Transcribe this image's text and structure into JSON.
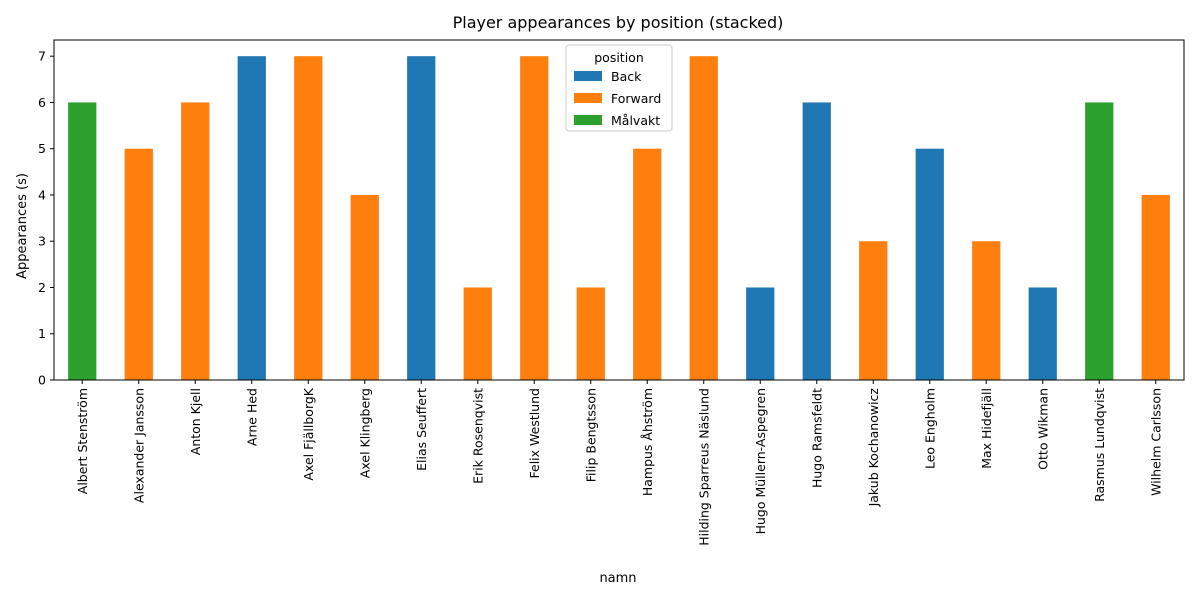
{
  "chart_data": {
    "type": "bar",
    "stacked": true,
    "title": "Player appearances by position (stacked)",
    "xlabel": "namn",
    "ylabel": "Appearances (s)",
    "ylim": [
      0,
      7.35
    ],
    "yticks": [
      0,
      1,
      2,
      3,
      4,
      5,
      6,
      7
    ],
    "grid": false,
    "legend": {
      "title": "position",
      "placement": "upper-center"
    },
    "categories": [
      "Albert Stenström",
      "Alexander Jansson",
      "Anton Kjell",
      "Arne Hed",
      "Axel FjällborgK",
      "Axel Klingberg",
      "Elias Seuffert",
      "Erik Rosenqvist",
      "Felix Westlund",
      "Filip Bengtsson",
      "Hampus Åhström",
      "Hilding Sparreus Näslund",
      "Hugo Müllern-Aspegren",
      "Hugo Ramsfeldt",
      "Jakub Kochanowicz",
      "Leo Engholm",
      "Max Hidefjäll",
      "Otto Wikman",
      "Rasmus Lundqvist",
      "Wilhelm Carlsson"
    ],
    "series": [
      {
        "name": "Back",
        "color": "#1f77b4",
        "values": [
          0,
          0,
          0,
          7,
          0,
          0,
          7,
          0,
          0,
          0,
          0,
          0,
          2,
          6,
          0,
          5,
          0,
          2,
          0,
          0
        ]
      },
      {
        "name": "Forward",
        "color": "#ff7f0e",
        "values": [
          0,
          5,
          6,
          0,
          7,
          4,
          0,
          2,
          7,
          2,
          5,
          7,
          0,
          0,
          3,
          0,
          3,
          0,
          0,
          4
        ]
      },
      {
        "name": "Målvakt",
        "color": "#2ca02c",
        "values": [
          6,
          0,
          0,
          0,
          0,
          0,
          0,
          0,
          0,
          0,
          0,
          0,
          0,
          0,
          0,
          0,
          0,
          0,
          6,
          0
        ]
      }
    ]
  }
}
